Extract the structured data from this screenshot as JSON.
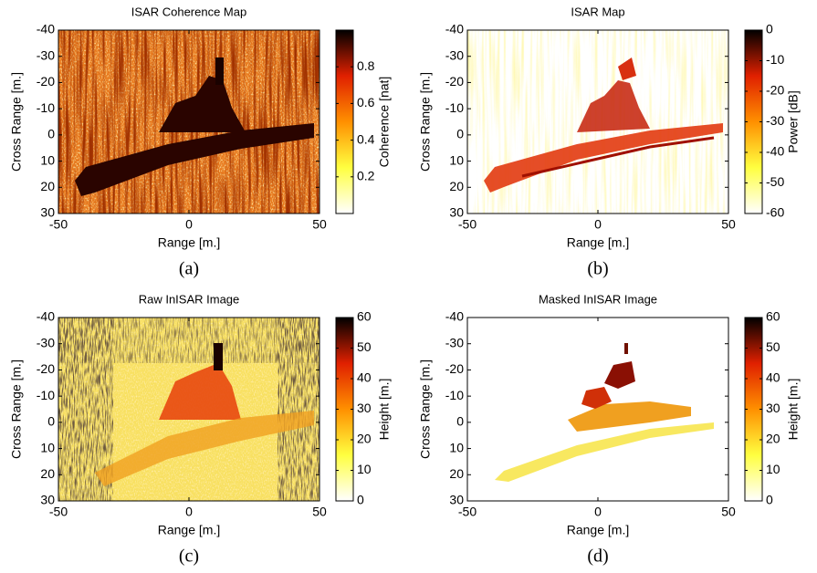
{
  "chart_data": [
    {
      "type": "heatmap",
      "title": "ISAR Coherence Map",
      "xlabel": "Range [m.]",
      "ylabel": "Cross Range [m.]",
      "xlim": [
        -50,
        50
      ],
      "xticks": [
        -50,
        0,
        50
      ],
      "ylim": [
        -40,
        30
      ],
      "yreverse": true,
      "yticks": [
        -40,
        -30,
        -20,
        -10,
        0,
        10,
        20,
        30
      ],
      "colorbar_label": "Coherence [nat]",
      "clim": [
        0,
        1
      ],
      "cticks": [
        0.2,
        0.4,
        0.6,
        0.8
      ],
      "colormap": [
        "#ffffff",
        "#ffff40",
        "#ff9000",
        "#e02000",
        "#000000"
      ],
      "caption": "(a)"
    },
    {
      "type": "heatmap",
      "title": "ISAR Map",
      "xlabel": "Range [m.]",
      "ylabel": "Cross Range [m.]",
      "xlim": [
        -50,
        50
      ],
      "xticks": [
        -50,
        0,
        50
      ],
      "ylim": [
        -40,
        30
      ],
      "yreverse": true,
      "yticks": [
        -40,
        -30,
        -20,
        -10,
        0,
        10,
        20,
        30
      ],
      "colorbar_label": "Power [dB]",
      "clim": [
        -60,
        0
      ],
      "cticks": [
        -60,
        -50,
        -40,
        -30,
        -20,
        -10,
        0
      ],
      "colormap": [
        "#ffffff",
        "#ffff40",
        "#ff9000",
        "#e02000",
        "#000000"
      ],
      "caption": "(b)"
    },
    {
      "type": "heatmap",
      "title": "Raw InISAR Image",
      "xlabel": "Range [m.]",
      "ylabel": "Cross Range [m.]",
      "xlim": [
        -50,
        50
      ],
      "xticks": [
        -50,
        0,
        50
      ],
      "ylim": [
        -40,
        30
      ],
      "yreverse": true,
      "yticks": [
        -40,
        -30,
        -20,
        -10,
        0,
        10,
        20,
        30
      ],
      "colorbar_label": "Height [m.]",
      "clim": [
        0,
        60
      ],
      "cticks": [
        0,
        10,
        20,
        30,
        40,
        50,
        60
      ],
      "colormap": [
        "#ffffff",
        "#ffff40",
        "#ff9000",
        "#e02000",
        "#000000"
      ],
      "caption": "(c)"
    },
    {
      "type": "heatmap",
      "title": "Masked InISAR Image",
      "xlabel": "Range [m.]",
      "ylabel": "Cross Range [m.]",
      "xlim": [
        -50,
        50
      ],
      "xticks": [
        -50,
        0,
        50
      ],
      "ylim": [
        -40,
        30
      ],
      "yreverse": true,
      "yticks": [
        -40,
        -30,
        -20,
        -10,
        0,
        10,
        20,
        30
      ],
      "colorbar_label": "Height [m.]",
      "clim": [
        0,
        60
      ],
      "cticks": [
        0,
        10,
        20,
        30,
        40,
        50,
        60
      ],
      "colormap": [
        "#ffffff",
        "#ffff40",
        "#ff9000",
        "#e02000",
        "#000000"
      ],
      "caption": "(d)"
    }
  ]
}
